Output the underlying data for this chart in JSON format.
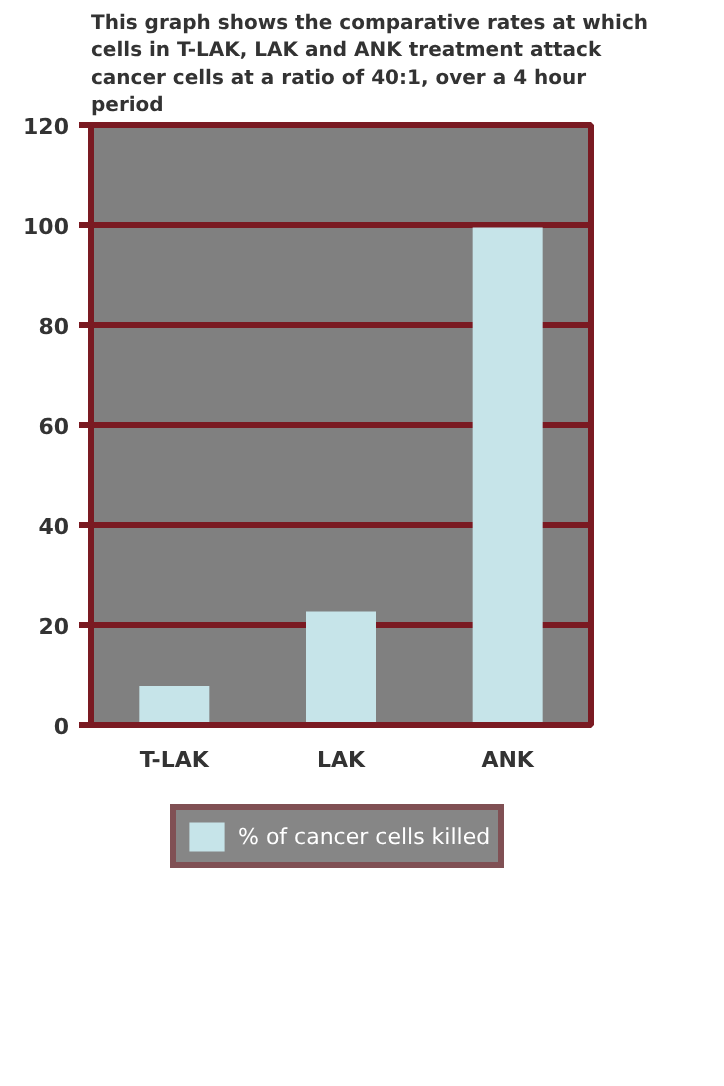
{
  "chart_data": {
    "type": "bar",
    "title": "This graph shows the comparative rates at which cells in T-LAK, LAK and ANK treatment attack cancer cells at a ratio of 40:1, over a 4 hour period",
    "categories": [
      "T-LAK",
      "LAK",
      "ANK"
    ],
    "series": [
      {
        "name": "% of cancer cells killed",
        "color": "#c6e4e9",
        "values": [
          7.8,
          22.7,
          99.5
        ]
      }
    ],
    "ylim": [
      0,
      120
    ],
    "yticks": [
      0,
      20,
      40,
      60,
      80,
      100,
      120
    ],
    "grid": "y",
    "legend": "bottom"
  }
}
